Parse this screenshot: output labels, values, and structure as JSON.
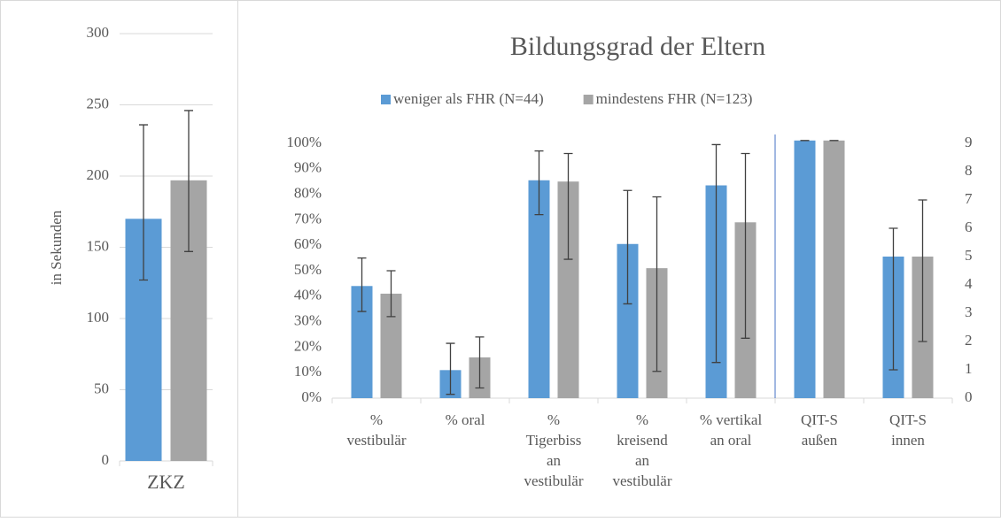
{
  "chart_data": [
    {
      "type": "bar",
      "y_label": "in Sekunden",
      "categories": [
        "ZKZ"
      ],
      "ylim": [
        0,
        300
      ],
      "yticks": [
        0,
        50,
        100,
        150,
        200,
        250,
        300
      ],
      "grid": true,
      "series": [
        {
          "color": "#5b9bd5",
          "values": [
            170
          ],
          "low": [
            127
          ],
          "high": [
            236
          ]
        },
        {
          "color": "#a5a5a5",
          "values": [
            197
          ],
          "low": [
            147
          ],
          "high": [
            246
          ]
        }
      ]
    },
    {
      "type": "bar",
      "title": "Bildungsgrad der Eltern",
      "categories": [
        [
          "%",
          "vestibulär"
        ],
        [
          "% oral"
        ],
        [
          "%",
          "Tigerbiss",
          "an",
          "vestibulär"
        ],
        [
          "%",
          "kreisend",
          "an",
          "vestibulär"
        ],
        [
          "% vertikal",
          "an oral"
        ],
        [
          "QIT-S",
          "außen"
        ],
        [
          "QIT-S",
          "innen"
        ]
      ],
      "axes": [
        "y",
        "y",
        "y",
        "y",
        "y",
        "y2",
        "y2"
      ],
      "ylim": [
        0,
        100
      ],
      "yticks": [
        {
          "value": 0,
          "label": "0%"
        },
        {
          "value": 10,
          "label": "10%"
        },
        {
          "value": 20,
          "label": "20%"
        },
        {
          "value": 30,
          "label": "30%"
        },
        {
          "value": 40,
          "label": "40%"
        },
        {
          "value": 50,
          "label": "50%"
        },
        {
          "value": 60,
          "label": "60%"
        },
        {
          "value": 70,
          "label": "70%"
        },
        {
          "value": 80,
          "label": "80%"
        },
        {
          "value": 90,
          "label": "90%"
        },
        {
          "value": 100,
          "label": "100%"
        }
      ],
      "y2lim": [
        0,
        9
      ],
      "y2ticks": [
        0,
        1,
        2,
        3,
        4,
        5,
        6,
        7,
        8,
        9
      ],
      "grid": false,
      "series": [
        {
          "name": "weniger als FHR (N=44)",
          "color": "#5b9bd5",
          "values": [
            44,
            11,
            85.5,
            60.5,
            83.5,
            9.1,
            5.0
          ],
          "low": [
            34,
            1.5,
            72,
            37,
            14,
            9.1,
            1.0
          ],
          "high": [
            55,
            21.5,
            97,
            81.5,
            99.5,
            9.1,
            6.0
          ]
        },
        {
          "name": "mindestens FHR (N=123)",
          "color": "#a5a5a5",
          "values": [
            41,
            16,
            85,
            51,
            69,
            9.1,
            5.0
          ],
          "low": [
            32,
            4,
            54.5,
            10.5,
            23.5,
            9.1,
            2.0
          ],
          "high": [
            50,
            24,
            96,
            79,
            96,
            9.1,
            7.0
          ]
        }
      ]
    }
  ]
}
